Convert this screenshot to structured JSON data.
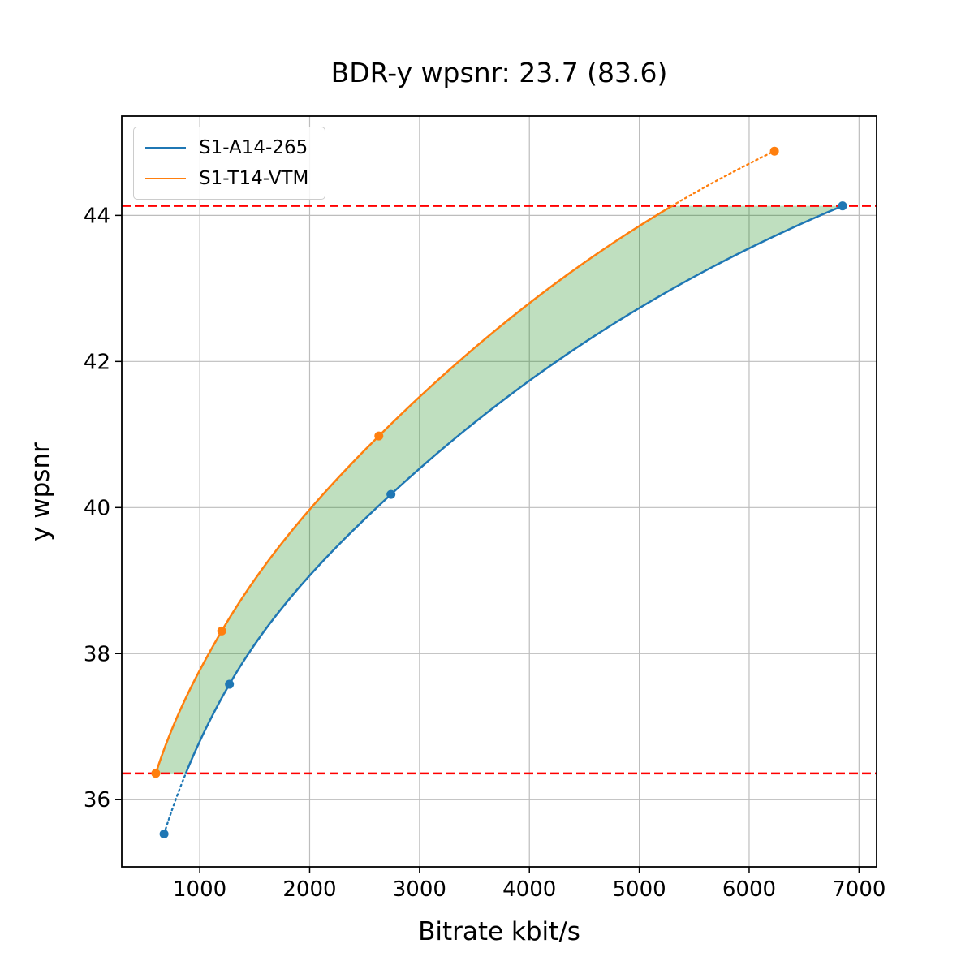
{
  "chart_data": {
    "type": "line",
    "title": "BDR-y wpsnr: 23.7 (83.6)",
    "xlabel": "Bitrate kbit/s",
    "ylabel": "y wpsnr",
    "xlim": [
      290,
      7160
    ],
    "ylim": [
      35.08,
      45.36
    ],
    "xticks": [
      1000,
      2000,
      3000,
      4000,
      5000,
      6000,
      7000
    ],
    "yticks": [
      36,
      38,
      40,
      42,
      44
    ],
    "grid": true,
    "grid_color": "#bdbdbd",
    "legend_position": "upper left",
    "integration_bounds": [
      36.36,
      44.13
    ],
    "hline_color": "#ff0000",
    "region_fill": "#008000",
    "region_opacity": 0.25,
    "series": [
      {
        "name": "S1-A14-265",
        "color": "#1f77b4",
        "points": [
          [
            675,
            35.53
          ],
          [
            1270,
            37.58
          ],
          [
            2740,
            40.18
          ],
          [
            6850,
            44.13
          ]
        ]
      },
      {
        "name": "S1-T14-VTM",
        "color": "#ff7f0e",
        "points": [
          [
            600,
            36.36
          ],
          [
            1200,
            38.31
          ],
          [
            2630,
            40.98
          ],
          [
            6230,
            44.88
          ]
        ]
      }
    ]
  }
}
